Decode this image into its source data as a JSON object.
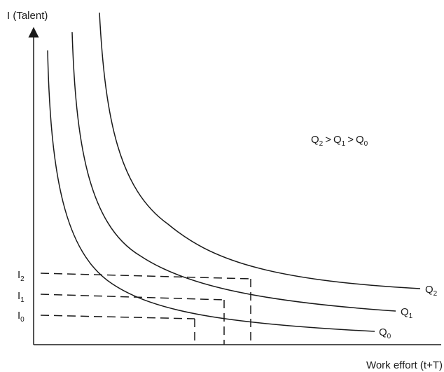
{
  "axes": {
    "y_label": "I (Talent)",
    "x_label": "Work effort (t+T)"
  },
  "relation": {
    "q_letter": "Q",
    "gt": ">",
    "subs": [
      "2",
      "1",
      "0"
    ]
  },
  "ticks": [
    {
      "letter": "I",
      "sub": "2"
    },
    {
      "letter": "I",
      "sub": "1"
    },
    {
      "letter": "I",
      "sub": "0"
    }
  ],
  "curves": [
    {
      "letter": "Q",
      "sub": "2"
    },
    {
      "letter": "Q",
      "sub": "1"
    },
    {
      "letter": "Q",
      "sub": "0"
    }
  ],
  "colors": {
    "line": "#1a1a1a",
    "background": "#ffffff"
  }
}
